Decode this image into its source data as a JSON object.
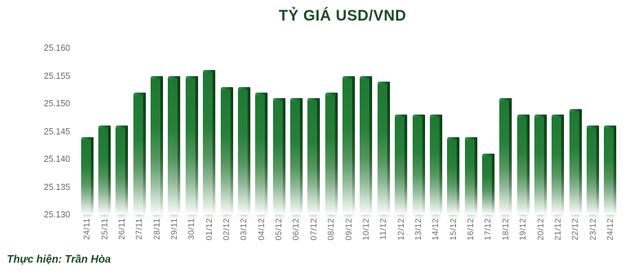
{
  "credit": "Thực hiện: Trần Hòa",
  "colors": {
    "title_green": "#1d4a28",
    "bar_green_top": "#1e7832",
    "bar_edge_dark": "#0a3b16",
    "axis_label_gray": "#696969",
    "background": "#ffffff"
  },
  "chart_data": {
    "type": "bar",
    "title": "TỶ GIÁ USD/VND",
    "xlabel": "",
    "ylabel": "",
    "grid": false,
    "legend": false,
    "ylim": [
      25.13,
      25.16
    ],
    "ytick_step": 0.005,
    "ytick_labels": [
      "25.130",
      "25.135",
      "25.140",
      "25.145",
      "25.150",
      "25.155",
      "25.160"
    ],
    "categories": [
      "24/11",
      "25/11",
      "26/11",
      "27/11",
      "28/11",
      "29/11",
      "30/11",
      "01/12",
      "02/12",
      "03/12",
      "04/12",
      "05/12",
      "06/12",
      "07/12",
      "08/12",
      "09/12",
      "10/12",
      "11/12",
      "12/12",
      "13/12",
      "14/12",
      "15/12",
      "16/12",
      "17/12",
      "18/12",
      "19/12",
      "20/12",
      "21/12",
      "22/12",
      "23/12",
      "24/12"
    ],
    "values": [
      25.144,
      25.146,
      25.146,
      25.152,
      25.155,
      25.155,
      25.155,
      25.156,
      25.153,
      25.153,
      25.152,
      25.151,
      25.151,
      25.151,
      25.152,
      25.155,
      25.155,
      25.154,
      25.148,
      25.148,
      25.148,
      25.144,
      25.144,
      25.141,
      25.151,
      25.148,
      25.148,
      25.148,
      25.149,
      25.146,
      25.146
    ]
  }
}
